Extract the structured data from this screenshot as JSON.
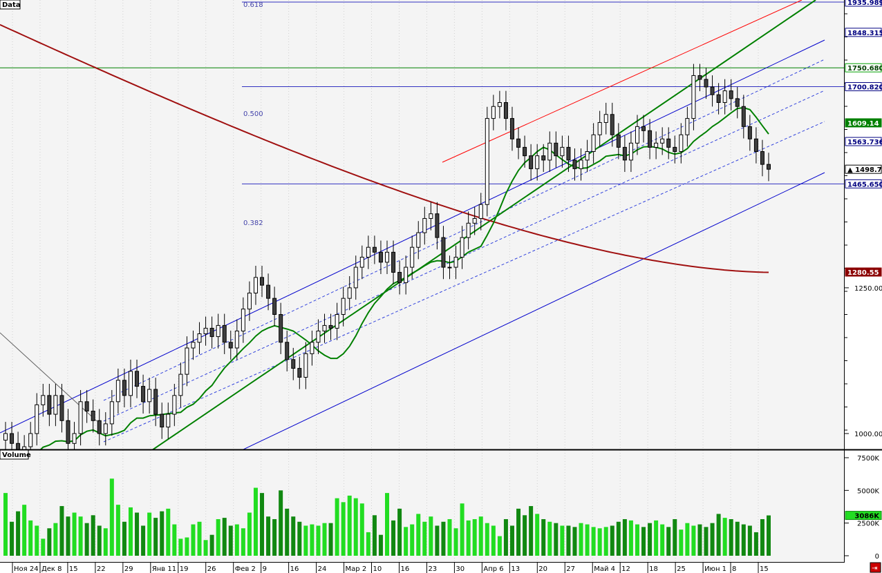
{
  "panels": {
    "price_title": "Data",
    "volume_title": "Volume"
  },
  "fib_labels": [
    "0.618",
    "0.500",
    "0.382"
  ],
  "price_axis": {
    "ticks": [
      {
        "label": "1250.00",
        "value": 1250
      },
      {
        "label": "1000.00",
        "value": 1000
      }
    ],
    "tags": [
      {
        "label": "1935.9892",
        "value": 1935.99,
        "bg": "#ffffff",
        "fg": "#000080",
        "border": "#000080"
      },
      {
        "label": "1848.3150",
        "value": 1848.3,
        "bg": "#ffffff",
        "fg": "#000080",
        "border": "#000080"
      },
      {
        "label": "1750.6800",
        "value": 1750.68,
        "bg": "#ffffff",
        "fg": "#004000",
        "border": "#00a000"
      },
      {
        "label": "1700.8200",
        "value": 1700.82,
        "bg": "#ffffff",
        "fg": "#000080",
        "border": "#000080"
      },
      {
        "label": "1609.14",
        "value": 1609.14,
        "bg": "#008000",
        "fg": "#ffffff",
        "border": "#008000"
      },
      {
        "label": "1563.7366",
        "value": 1563.74,
        "bg": "#ffffff",
        "fg": "#000080",
        "border": "#000080"
      },
      {
        "label": "▲ 1498.79",
        "value": 1498.79,
        "bg": "#ffffff",
        "fg": "#000000",
        "border": "#000000"
      },
      {
        "label": "1465.6508",
        "value": 1465.65,
        "bg": "#ffffff",
        "fg": "#000080",
        "border": "#000080"
      },
      {
        "label": "1280.55",
        "value": 1280.55,
        "bg": "#8b0000",
        "fg": "#ffffff",
        "border": "#8b0000"
      }
    ]
  },
  "volume_axis": {
    "ticks": [
      {
        "label": "7500K",
        "value": 7500
      },
      {
        "label": "5000K",
        "value": 5000
      },
      {
        "label": "2500K",
        "value": 2500
      },
      {
        "label": "0",
        "value": 0
      }
    ],
    "tag": {
      "label": "3086K",
      "value": 3086
    }
  },
  "x_labels": [
    "Ноя 24",
    "Дек 8",
    "15",
    "22",
    "29",
    "Янв 11",
    "19",
    "26",
    "Фев 2",
    "9",
    "16",
    "24",
    "Мар 2",
    "10",
    "16",
    "23",
    "30",
    "Апр 6",
    "13",
    "20",
    "27",
    "Май 4",
    "12",
    "18",
    "25",
    "Июн 1",
    "8",
    "15"
  ],
  "chart_data": {
    "type": "candlestick",
    "title": "Data",
    "ylim": [
      950,
      1940
    ],
    "volume_ylim": [
      0,
      8000
    ],
    "fib_levels": [
      {
        "label": "0.618",
        "value": 1936
      },
      {
        "label": "0.500",
        "value": 1700.8
      },
      {
        "label": "0.382",
        "value": 1465.65
      }
    ],
    "horizontal_line": {
      "value": 1750.68,
      "color": "#008000"
    },
    "closes": [
      1000,
      985,
      960,
      980,
      1000,
      1045,
      1060,
      1030,
      1060,
      1020,
      985,
      1000,
      1050,
      1035,
      1020,
      1000,
      1015,
      1050,
      1085,
      1060,
      1100,
      1075,
      1050,
      1070,
      1030,
      1010,
      1030,
      1060,
      1095,
      1140,
      1150,
      1165,
      1175,
      1160,
      1180,
      1150,
      1140,
      1170,
      1210,
      1240,
      1270,
      1255,
      1230,
      1200,
      1150,
      1120,
      1105,
      1090,
      1130,
      1150,
      1170,
      1180,
      1175,
      1200,
      1230,
      1250,
      1290,
      1310,
      1330,
      1320,
      1300,
      1320,
      1280,
      1260,
      1290,
      1330,
      1360,
      1390,
      1400,
      1350,
      1290,
      1290,
      1310,
      1350,
      1380,
      1390,
      1420,
      1620,
      1650,
      1660,
      1620,
      1570,
      1550,
      1530,
      1500,
      1530,
      1520,
      1560,
      1530,
      1550,
      1520,
      1500,
      1520,
      1540,
      1580,
      1610,
      1630,
      1580,
      1550,
      1520,
      1560,
      1600,
      1590,
      1550,
      1560,
      1570,
      1550,
      1540,
      1580,
      1620,
      1730,
      1720,
      1700,
      1680,
      1660,
      1690,
      1670,
      1650,
      1600,
      1570,
      1540,
      1510,
      1498.79
    ],
    "volumes": [
      4800,
      2600,
      3400,
      3900,
      2700,
      2300,
      1300,
      2100,
      2500,
      3800,
      3000,
      3300,
      3000,
      2500,
      3100,
      2300,
      2100,
      5900,
      3900,
      2600,
      3700,
      3300,
      2300,
      3300,
      2900,
      3400,
      3600,
      2400,
      1300,
      1400,
      2400,
      2600,
      1200,
      1600,
      2800,
      2900,
      2300,
      2400,
      2100,
      3300,
      5200,
      4800,
      3000,
      2800,
      5000,
      3600,
      3000,
      2600,
      2300,
      2400,
      2300,
      2500,
      2500,
      4400,
      4100,
      4600,
      4400,
      4000,
      1800,
      3100,
      1600,
      4800,
      2700,
      3600,
      2200,
      2400,
      3200,
      2600,
      3000,
      2300,
      2600,
      2800,
      2100,
      4000,
      2700,
      2800,
      3000,
      2500,
      2300,
      1500,
      2800,
      2300,
      3600,
      3100,
      3800,
      3200,
      2800,
      2600,
      2500,
      2300,
      2300,
      2200,
      2500,
      2400,
      2200,
      2100,
      2200,
      2300,
      2600,
      2800,
      2700,
      2400,
      2200,
      2500,
      2700,
      2400,
      2200,
      2800,
      2000,
      2500,
      2300,
      2400,
      2200,
      2500,
      3200,
      2900,
      2800,
      2600,
      2400,
      2300,
      1800,
      2800,
      3086
    ]
  }
}
